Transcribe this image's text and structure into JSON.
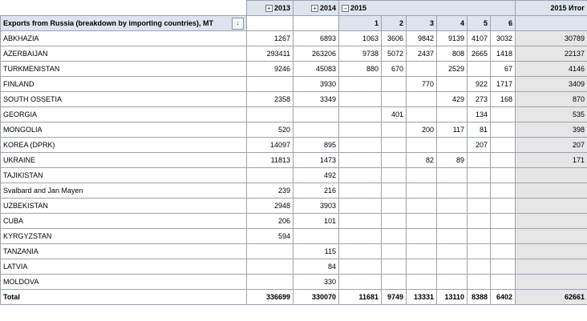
{
  "header": {
    "years": [
      {
        "year": "2013",
        "toggle": "+"
      },
      {
        "year": "2014",
        "toggle": "+"
      },
      {
        "year": "2015",
        "toggle": "−"
      }
    ],
    "months": [
      "1",
      "2",
      "3",
      "4",
      "5",
      "6"
    ],
    "grand_label": "2015 Итог",
    "row_field": "Exports from Russia (breakdown by importing countries), MT",
    "filter_glyph": "↓"
  },
  "rows": [
    {
      "country": "ABKHAZIA",
      "y2013": "1267",
      "y2014": "6893",
      "m": [
        "1063",
        "3606",
        "9842",
        "9139",
        "4107",
        "3032"
      ],
      "total": "30789"
    },
    {
      "country": "AZERBAIJAN",
      "y2013": "293411",
      "y2014": "263206",
      "m": [
        "9738",
        "5072",
        "2437",
        "808",
        "2665",
        "1418"
      ],
      "total": "22137"
    },
    {
      "country": "TURKMENISTAN",
      "y2013": "9246",
      "y2014": "45083",
      "m": [
        "880",
        "670",
        "",
        "2529",
        "",
        "67"
      ],
      "total": "4146"
    },
    {
      "country": "FINLAND",
      "y2013": "",
      "y2014": "3930",
      "m": [
        "",
        "",
        "770",
        "",
        "922",
        "1717"
      ],
      "total": "3409"
    },
    {
      "country": "SOUTH OSSETIA",
      "y2013": "2358",
      "y2014": "3349",
      "m": [
        "",
        "",
        "",
        "429",
        "273",
        "168"
      ],
      "total": "870"
    },
    {
      "country": "GEORGIA",
      "y2013": "",
      "y2014": "",
      "m": [
        "",
        "401",
        "",
        "",
        "134",
        ""
      ],
      "total": "535"
    },
    {
      "country": "MONGOLIA",
      "y2013": "520",
      "y2014": "",
      "m": [
        "",
        "",
        "200",
        "117",
        "81",
        ""
      ],
      "total": "398"
    },
    {
      "country": "KOREA (DPRK)",
      "y2013": "14097",
      "y2014": "895",
      "m": [
        "",
        "",
        "",
        "",
        "207",
        ""
      ],
      "total": "207"
    },
    {
      "country": "UKRAINE",
      "y2013": "11813",
      "y2014": "1473",
      "m": [
        "",
        "",
        "82",
        "89",
        "",
        ""
      ],
      "total": "171"
    },
    {
      "country": "TAJIKISTAN",
      "y2013": "",
      "y2014": "492",
      "m": [
        "",
        "",
        "",
        "",
        "",
        ""
      ],
      "total": ""
    },
    {
      "country": "Svalbard and Jan Mayen",
      "y2013": "239",
      "y2014": "216",
      "m": [
        "",
        "",
        "",
        "",
        "",
        ""
      ],
      "total": ""
    },
    {
      "country": "UZBEKISTAN",
      "y2013": "2948",
      "y2014": "3903",
      "m": [
        "",
        "",
        "",
        "",
        "",
        ""
      ],
      "total": ""
    },
    {
      "country": "CUBA",
      "y2013": "206",
      "y2014": "101",
      "m": [
        "",
        "",
        "",
        "",
        "",
        ""
      ],
      "total": ""
    },
    {
      "country": "KYRGYZSTAN",
      "y2013": "594",
      "y2014": "",
      "m": [
        "",
        "",
        "",
        "",
        "",
        ""
      ],
      "total": ""
    },
    {
      "country": "TANZANIA",
      "y2013": "",
      "y2014": "115",
      "m": [
        "",
        "",
        "",
        "",
        "",
        ""
      ],
      "total": ""
    },
    {
      "country": "LATVIA",
      "y2013": "",
      "y2014": "84",
      "m": [
        "",
        "",
        "",
        "",
        "",
        ""
      ],
      "total": ""
    },
    {
      "country": "MOLDOVA",
      "y2013": "",
      "y2014": "330",
      "m": [
        "",
        "",
        "",
        "",
        "",
        ""
      ],
      "total": ""
    }
  ],
  "total_row": {
    "label": "Total",
    "y2013": "336699",
    "y2014": "330070",
    "m": [
      "11681",
      "9749",
      "13331",
      "13110",
      "8388",
      "6402"
    ],
    "total": "62661"
  }
}
